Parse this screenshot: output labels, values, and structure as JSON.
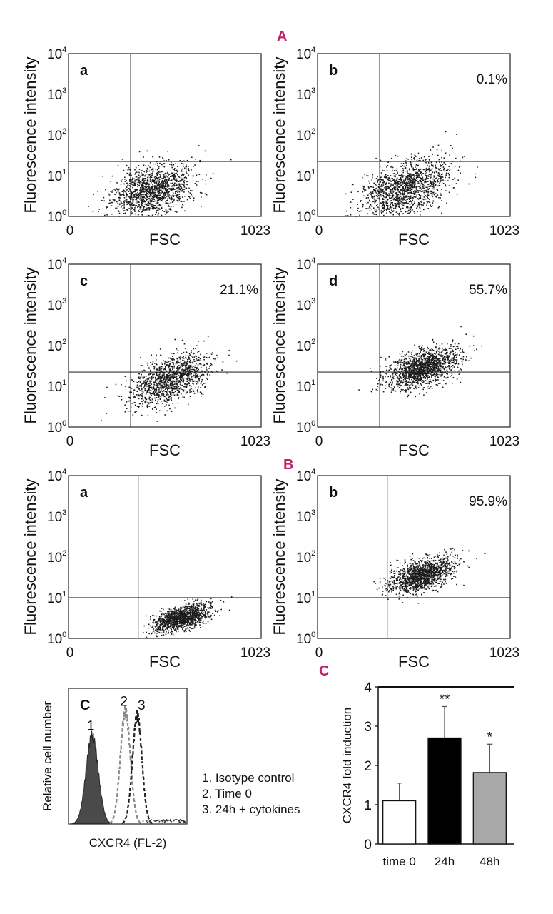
{
  "section_labels": {
    "A": "A",
    "B": "B",
    "C": "C"
  },
  "chart_data": [
    {
      "id": "A-a",
      "type": "scatter",
      "panel": "a",
      "xlabel": "FSC",
      "ylabel": "Fluorescence intensity",
      "x_ticks": [
        "0",
        "1023"
      ],
      "xlim": [
        0,
        1023
      ],
      "y_ticks": [
        "10",
        "10",
        "10",
        "10",
        "10"
      ],
      "y_exponents": [
        "0",
        "1",
        "2",
        "3",
        "4"
      ],
      "ylim_log10": [
        0,
        4
      ],
      "gate": {
        "x": 330,
        "y_log10": 1.35
      },
      "cluster": {
        "x_mean": 450,
        "y_log10_mean": 0.65,
        "x_sd": 110,
        "y_log10_sd": 0.3,
        "slope": 0.0012,
        "n": 1400
      },
      "percent_label": null
    },
    {
      "id": "A-b",
      "type": "scatter",
      "panel": "b",
      "xlabel": "FSC",
      "ylabel": "Fluorescence intensity",
      "x_ticks": [
        "0",
        "1023"
      ],
      "xlim": [
        0,
        1023
      ],
      "y_ticks": [
        "10",
        "10",
        "10",
        "10",
        "10"
      ],
      "y_exponents": [
        "0",
        "1",
        "2",
        "3",
        "4"
      ],
      "ylim_log10": [
        0,
        4
      ],
      "gate": {
        "x": 330,
        "y_log10": 1.35
      },
      "cluster": {
        "x_mean": 470,
        "y_log10_mean": 0.7,
        "x_sd": 115,
        "y_log10_sd": 0.32,
        "slope": 0.0014,
        "n": 1400
      },
      "percent_label": "0.1%"
    },
    {
      "id": "A-c",
      "type": "scatter",
      "panel": "c",
      "xlabel": "FSC",
      "ylabel": "Fluorescence intensity",
      "x_ticks": [
        "0",
        "1023"
      ],
      "xlim": [
        0,
        1023
      ],
      "y_ticks": [
        "10",
        "10",
        "10",
        "10",
        "10"
      ],
      "y_exponents": [
        "0",
        "1",
        "2",
        "3",
        "4"
      ],
      "ylim_log10": [
        0,
        4
      ],
      "gate": {
        "x": 330,
        "y_log10": 1.35
      },
      "cluster": {
        "x_mean": 540,
        "y_log10_mean": 1.15,
        "x_sd": 105,
        "y_log10_sd": 0.28,
        "slope": 0.0017,
        "n": 1300
      },
      "percent_label": "21.1%"
    },
    {
      "id": "A-d",
      "type": "scatter",
      "panel": "d",
      "xlabel": "FSC",
      "ylabel": "Fluorescence intensity",
      "x_ticks": [
        "0",
        "1023"
      ],
      "xlim": [
        0,
        1023
      ],
      "y_ticks": [
        "10",
        "10",
        "10",
        "10",
        "10"
      ],
      "y_exponents": [
        "0",
        "1",
        "2",
        "3",
        "4"
      ],
      "ylim_log10": [
        0,
        4
      ],
      "gate": {
        "x": 330,
        "y_log10": 1.35
      },
      "cluster": {
        "x_mean": 560,
        "y_log10_mean": 1.45,
        "x_sd": 95,
        "y_log10_sd": 0.22,
        "slope": 0.0012,
        "n": 1500
      },
      "percent_label": "55.7%"
    },
    {
      "id": "B-a",
      "type": "scatter",
      "panel": "a",
      "xlabel": "FSC",
      "ylabel": "Fluorescence intensity",
      "x_ticks": [
        "0",
        "1023"
      ],
      "xlim": [
        0,
        1023
      ],
      "y_ticks": [
        "10",
        "10",
        "10",
        "10",
        "10"
      ],
      "y_exponents": [
        "0",
        "1",
        "2",
        "3",
        "4"
      ],
      "ylim_log10": [
        0,
        4
      ],
      "gate": {
        "x": 370,
        "y_log10": 1.0
      },
      "cluster": {
        "x_mean": 600,
        "y_log10_mean": 0.5,
        "x_sd": 75,
        "y_log10_sd": 0.14,
        "slope": 0.0012,
        "n": 1300
      },
      "percent_label": null
    },
    {
      "id": "B-b",
      "type": "scatter",
      "panel": "b",
      "xlabel": "FSC",
      "ylabel": "Fluorescence intensity",
      "x_ticks": [
        "0",
        "1023"
      ],
      "xlim": [
        0,
        1023
      ],
      "y_ticks": [
        "10",
        "10",
        "10",
        "10",
        "10"
      ],
      "y_exponents": [
        "0",
        "1",
        "2",
        "3",
        "4"
      ],
      "ylim_log10": [
        0,
        4
      ],
      "gate": {
        "x": 370,
        "y_log10": 1.0
      },
      "cluster": {
        "x_mean": 560,
        "y_log10_mean": 1.55,
        "x_sd": 85,
        "y_log10_sd": 0.18,
        "slope": 0.0012,
        "n": 1400
      },
      "percent_label": "95.9%"
    },
    {
      "id": "C-histogram",
      "type": "area",
      "panel": "C",
      "ylabel": "Relative cell number",
      "xlabel": "CXCR4 (FL-2)",
      "series": [
        {
          "name": "1",
          "style": "filled",
          "center": 0.2,
          "width": 0.052,
          "height": 0.65
        },
        {
          "name": "2",
          "style": "dashed-gray",
          "center": 0.48,
          "width": 0.042,
          "height": 0.83
        },
        {
          "name": "3",
          "style": "dashed-black",
          "center": 0.58,
          "width": 0.04,
          "height": 0.8
        }
      ],
      "legend": [
        "1. Isotype control",
        "2. Time 0",
        "3. 24h + cytokines"
      ]
    },
    {
      "id": "C-bar",
      "type": "bar",
      "panel": "C",
      "ylabel": "CXCR4 fold induction",
      "categories": [
        "time 0",
        "24h",
        "48h"
      ],
      "values": [
        1.1,
        2.7,
        1.82
      ],
      "errors": [
        0.45,
        0.8,
        0.72
      ],
      "bar_colors": [
        "#ffffff",
        "#000000",
        "#a8a8a8"
      ],
      "significance": [
        "",
        "**",
        "*"
      ],
      "ylim": [
        0,
        4
      ],
      "y_ticks": [
        0,
        1,
        2,
        3,
        4
      ]
    }
  ]
}
